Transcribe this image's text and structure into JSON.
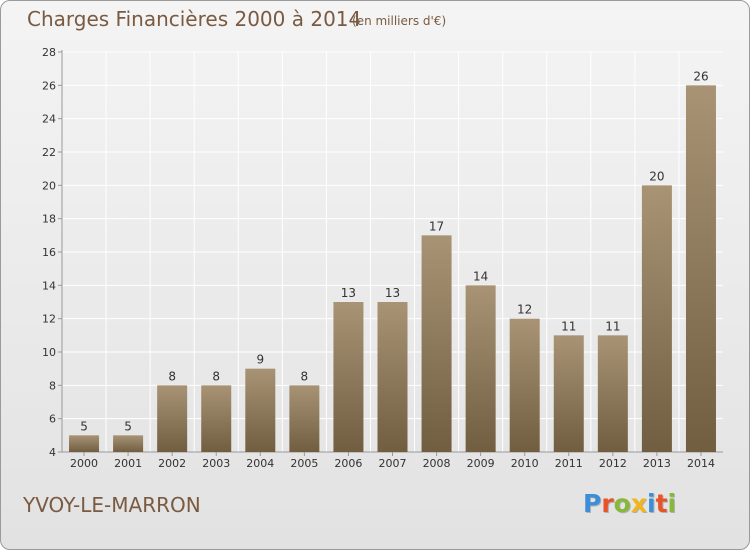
{
  "header": {
    "title": "Charges Financières 2000 à 2014",
    "subtitle": "(en milliers d'€)"
  },
  "footer": {
    "place": "YVOY-LE-MARRON",
    "logo": "Proxiti"
  },
  "colors": {
    "bar_top": "#a89475",
    "bar_bottom": "#715d40",
    "text": "#7a5a41",
    "axis": "#999999",
    "grid": "#ffffff",
    "logo_letters": [
      "#3b8ed8",
      "#e8542a",
      "#88b83a",
      "#f2b51b",
      "#3b8ed8",
      "#e8542a",
      "#88b83a"
    ]
  },
  "chart_data": {
    "type": "bar",
    "categories": [
      "2000",
      "2001",
      "2002",
      "2003",
      "2004",
      "2005",
      "2006",
      "2007",
      "2008",
      "2009",
      "2010",
      "2011",
      "2012",
      "2013",
      "2014"
    ],
    "values": [
      5,
      5,
      8,
      8,
      9,
      8,
      13,
      13,
      17,
      14,
      12,
      11,
      11,
      20,
      26
    ],
    "title": "Charges Financières 2000 à 2014",
    "subtitle": "(en milliers d'€)",
    "xlabel": "",
    "ylabel": "",
    "ylim": [
      4,
      28
    ],
    "yticks": [
      4,
      6,
      8,
      10,
      12,
      14,
      16,
      18,
      20,
      22,
      24,
      26,
      28
    ],
    "grid": true,
    "data_labels": true
  }
}
